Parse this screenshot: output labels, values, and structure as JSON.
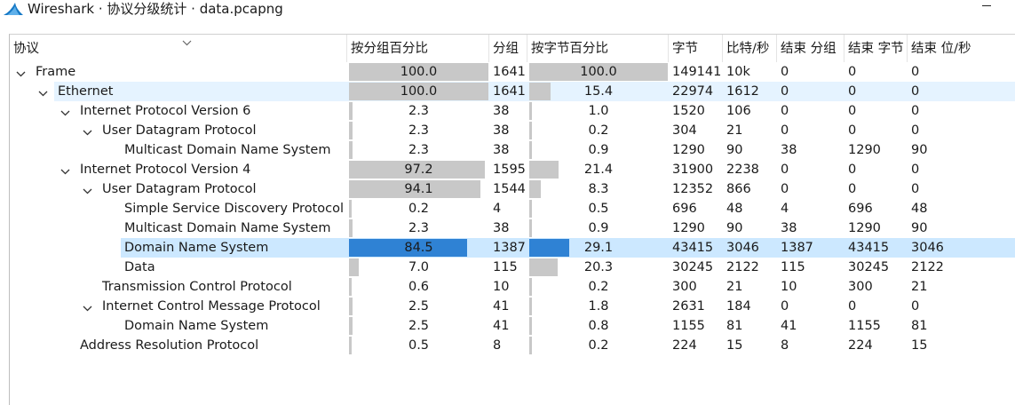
{
  "window": {
    "title": "Wireshark · 协议分级统计 · data.pcapng"
  },
  "columns": {
    "protocol": "协议",
    "pct_packets": "按分组百分比",
    "packets": "分组",
    "pct_bytes": "按字节百分比",
    "bytes": "字节",
    "bits_s": "比特/秒",
    "end_packets": "结束 分组",
    "end_bytes": "结束 字节",
    "end_bits_s": "结束 位/秒"
  },
  "rows": [
    {
      "name": "Frame",
      "depth": 0,
      "expanded": true,
      "pct_packets": "100.0",
      "pct_packets_value": 100.0,
      "packets": "1641",
      "pct_bytes": "100.0",
      "pct_bytes_value": 100.0,
      "bytes": "149141",
      "bits_s": "10k",
      "end_packets": "0",
      "end_bytes": "0",
      "end_bits_s": "0",
      "state": "none"
    },
    {
      "name": "Ethernet",
      "depth": 1,
      "expanded": true,
      "pct_packets": "100.0",
      "pct_packets_value": 100.0,
      "packets": "1641",
      "pct_bytes": "15.4",
      "pct_bytes_value": 15.4,
      "bytes": "22974",
      "bits_s": "1612",
      "end_packets": "0",
      "end_bytes": "0",
      "end_bits_s": "0",
      "state": "hover"
    },
    {
      "name": "Internet Protocol Version 6",
      "depth": 2,
      "expanded": true,
      "pct_packets": "2.3",
      "pct_packets_value": 2.3,
      "packets": "38",
      "pct_bytes": "1.0",
      "pct_bytes_value": 1.0,
      "bytes": "1520",
      "bits_s": "106",
      "end_packets": "0",
      "end_bytes": "0",
      "end_bits_s": "0",
      "state": "none"
    },
    {
      "name": "User Datagram Protocol",
      "depth": 3,
      "expanded": true,
      "pct_packets": "2.3",
      "pct_packets_value": 2.3,
      "packets": "38",
      "pct_bytes": "0.2",
      "pct_bytes_value": 0.2,
      "bytes": "304",
      "bits_s": "21",
      "end_packets": "0",
      "end_bytes": "0",
      "end_bits_s": "0",
      "state": "none"
    },
    {
      "name": "Multicast Domain Name System",
      "depth": 4,
      "expanded": null,
      "pct_packets": "2.3",
      "pct_packets_value": 2.3,
      "packets": "38",
      "pct_bytes": "0.9",
      "pct_bytes_value": 0.9,
      "bytes": "1290",
      "bits_s": "90",
      "end_packets": "38",
      "end_bytes": "1290",
      "end_bits_s": "90",
      "state": "none"
    },
    {
      "name": "Internet Protocol Version 4",
      "depth": 2,
      "expanded": true,
      "pct_packets": "97.2",
      "pct_packets_value": 97.2,
      "packets": "1595",
      "pct_bytes": "21.4",
      "pct_bytes_value": 21.4,
      "bytes": "31900",
      "bits_s": "2238",
      "end_packets": "0",
      "end_bytes": "0",
      "end_bits_s": "0",
      "state": "none"
    },
    {
      "name": "User Datagram Protocol",
      "depth": 3,
      "expanded": true,
      "pct_packets": "94.1",
      "pct_packets_value": 94.1,
      "packets": "1544",
      "pct_bytes": "8.3",
      "pct_bytes_value": 8.3,
      "bytes": "12352",
      "bits_s": "866",
      "end_packets": "0",
      "end_bytes": "0",
      "end_bits_s": "0",
      "state": "none"
    },
    {
      "name": "Simple Service Discovery Protocol",
      "depth": 4,
      "expanded": null,
      "pct_packets": "0.2",
      "pct_packets_value": 0.2,
      "packets": "4",
      "pct_bytes": "0.5",
      "pct_bytes_value": 0.5,
      "bytes": "696",
      "bits_s": "48",
      "end_packets": "4",
      "end_bytes": "696",
      "end_bits_s": "48",
      "state": "none"
    },
    {
      "name": "Multicast Domain Name System",
      "depth": 4,
      "expanded": null,
      "pct_packets": "2.3",
      "pct_packets_value": 2.3,
      "packets": "38",
      "pct_bytes": "0.9",
      "pct_bytes_value": 0.9,
      "bytes": "1290",
      "bits_s": "90",
      "end_packets": "38",
      "end_bytes": "1290",
      "end_bits_s": "90",
      "state": "none"
    },
    {
      "name": "Domain Name System",
      "depth": 4,
      "expanded": null,
      "pct_packets": "84.5",
      "pct_packets_value": 84.5,
      "packets": "1387",
      "pct_bytes": "29.1",
      "pct_bytes_value": 29.1,
      "bytes": "43415",
      "bits_s": "3046",
      "end_packets": "1387",
      "end_bytes": "43415",
      "end_bits_s": "3046",
      "state": "selected"
    },
    {
      "name": "Data",
      "depth": 4,
      "expanded": null,
      "pct_packets": "7.0",
      "pct_packets_value": 7.0,
      "packets": "115",
      "pct_bytes": "20.3",
      "pct_bytes_value": 20.3,
      "bytes": "30245",
      "bits_s": "2122",
      "end_packets": "115",
      "end_bytes": "30245",
      "end_bits_s": "2122",
      "state": "none"
    },
    {
      "name": "Transmission Control Protocol",
      "depth": 3,
      "expanded": null,
      "pct_packets": "0.6",
      "pct_packets_value": 0.6,
      "packets": "10",
      "pct_bytes": "0.2",
      "pct_bytes_value": 0.2,
      "bytes": "300",
      "bits_s": "21",
      "end_packets": "10",
      "end_bytes": "300",
      "end_bits_s": "21",
      "state": "none"
    },
    {
      "name": "Internet Control Message Protocol",
      "depth": 3,
      "expanded": true,
      "pct_packets": "2.5",
      "pct_packets_value": 2.5,
      "packets": "41",
      "pct_bytes": "1.8",
      "pct_bytes_value": 1.8,
      "bytes": "2631",
      "bits_s": "184",
      "end_packets": "0",
      "end_bytes": "0",
      "end_bits_s": "0",
      "state": "none"
    },
    {
      "name": "Domain Name System",
      "depth": 4,
      "expanded": null,
      "pct_packets": "2.5",
      "pct_packets_value": 2.5,
      "packets": "41",
      "pct_bytes": "0.8",
      "pct_bytes_value": 0.8,
      "bytes": "1155",
      "bits_s": "81",
      "end_packets": "41",
      "end_bytes": "1155",
      "end_bits_s": "81",
      "state": "none"
    },
    {
      "name": "Address Resolution Protocol",
      "depth": 2,
      "expanded": null,
      "pct_packets": "0.5",
      "pct_packets_value": 0.5,
      "packets": "8",
      "pct_bytes": "0.2",
      "pct_bytes_value": 0.2,
      "bytes": "224",
      "bits_s": "15",
      "end_packets": "8",
      "end_bytes": "224",
      "end_bits_s": "15",
      "state": "none"
    }
  ],
  "colors": {
    "bar": "#c8c8c8",
    "bar_selected": "#2f82d4",
    "row_selected": "#cce8ff",
    "row_hover": "#e5f3ff",
    "logo": "#1679c6"
  },
  "icons": {
    "app": "wireshark-fin-icon",
    "expand": "chevron-down-icon",
    "sort": "sort-chevron-icon",
    "minimize": "minimize-icon"
  }
}
